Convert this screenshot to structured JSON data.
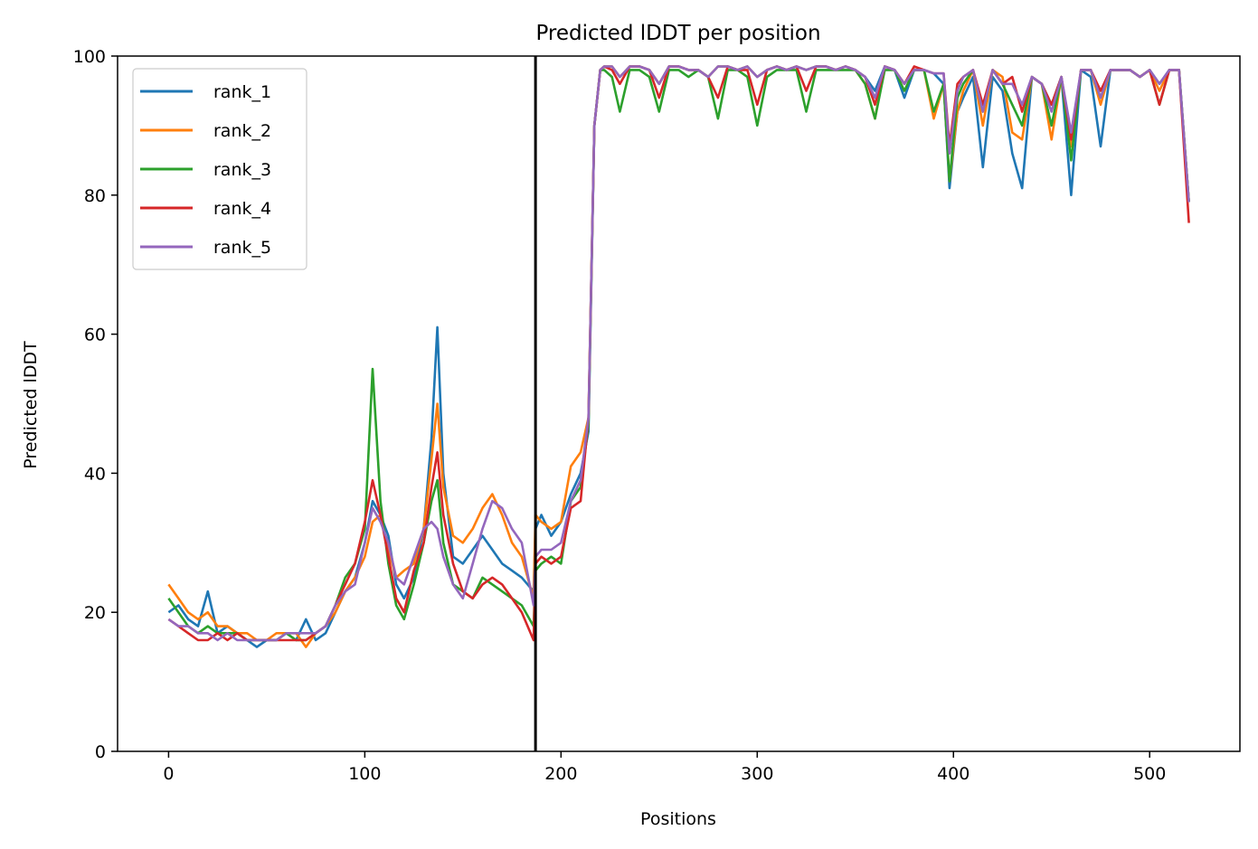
{
  "chart_data": {
    "type": "line",
    "title": "Predicted lDDT per position",
    "xlabel": "Positions",
    "ylabel": "Predicted lDDT",
    "xlim": [
      -26,
      546
    ],
    "ylim": [
      0,
      100
    ],
    "xticks": [
      0,
      100,
      200,
      300,
      400,
      500
    ],
    "yticks": [
      0,
      20,
      40,
      60,
      80,
      100
    ],
    "grid": false,
    "legend_position": "upper-left",
    "vertical_line": {
      "x": 187,
      "color": "#000000"
    },
    "x": [
      0,
      5,
      10,
      15,
      20,
      25,
      30,
      35,
      40,
      45,
      50,
      55,
      60,
      65,
      70,
      75,
      80,
      85,
      90,
      95,
      100,
      104,
      108,
      112,
      116,
      120,
      125,
      130,
      134,
      137,
      140,
      145,
      150,
      155,
      160,
      165,
      170,
      175,
      180,
      186,
      187,
      190,
      195,
      200,
      205,
      210,
      214,
      217,
      220,
      222,
      226,
      230,
      235,
      240,
      245,
      250,
      255,
      260,
      265,
      270,
      275,
      280,
      285,
      290,
      295,
      300,
      305,
      310,
      315,
      320,
      325,
      330,
      335,
      340,
      345,
      350,
      355,
      360,
      365,
      370,
      375,
      380,
      385,
      390,
      395,
      398,
      402,
      405,
      410,
      415,
      420,
      425,
      430,
      435,
      440,
      445,
      450,
      455,
      460,
      465,
      470,
      475,
      480,
      485,
      490,
      495,
      500,
      505,
      510,
      515,
      520
    ],
    "series": [
      {
        "name": "rank_1",
        "color": "#1f77b4",
        "values": [
          20,
          21,
          19,
          18,
          23,
          17,
          18,
          17,
          16,
          15,
          16,
          16,
          17,
          16,
          19,
          16,
          17,
          20,
          23,
          25,
          30,
          36,
          34,
          31,
          24,
          22,
          25,
          32,
          45,
          61,
          40,
          28,
          27,
          29,
          31,
          29,
          27,
          26,
          25,
          23,
          32,
          34,
          31,
          33,
          37,
          40,
          46,
          90,
          98,
          98.5,
          98.5,
          97,
          98.5,
          98.5,
          98,
          96,
          98.5,
          98.5,
          98,
          98,
          97,
          98.5,
          98.5,
          98,
          98.5,
          97,
          98,
          98.5,
          98,
          98.5,
          98,
          98.5,
          98.5,
          98,
          98.5,
          98,
          97,
          95,
          98.5,
          98,
          94,
          98,
          98,
          97.5,
          96,
          81,
          92,
          94,
          97,
          84,
          97,
          95,
          86,
          81,
          97,
          96,
          93,
          97,
          80,
          98,
          97,
          87,
          98,
          98,
          98,
          97,
          98,
          96,
          98,
          98,
          79
        ]
      },
      {
        "name": "rank_2",
        "color": "#ff7f0e",
        "values": [
          24,
          22,
          20,
          19,
          20,
          18,
          18,
          17,
          17,
          16,
          16,
          17,
          17,
          17,
          15,
          17,
          18,
          20,
          23,
          25,
          28,
          33,
          34,
          29,
          25,
          26,
          27,
          32,
          42,
          50,
          38,
          31,
          30,
          32,
          35,
          37,
          34,
          30,
          28,
          22,
          34,
          33,
          32,
          33,
          41,
          43,
          48,
          90,
          98,
          98.5,
          98.5,
          97,
          98.5,
          98.5,
          98,
          96,
          98.5,
          98.5,
          98,
          98,
          97,
          98.5,
          98.5,
          98,
          98.5,
          97,
          98,
          98.5,
          98,
          98.5,
          98,
          98.5,
          98.5,
          98,
          98.5,
          98,
          96,
          91,
          98.5,
          98,
          96,
          98,
          98,
          91,
          96,
          82,
          92,
          95,
          98,
          90,
          98,
          97,
          89,
          88,
          97,
          96,
          88,
          97,
          87,
          98,
          98,
          93,
          98,
          98,
          98,
          97,
          98,
          95,
          98,
          98,
          79
        ]
      },
      {
        "name": "rank_3",
        "color": "#2ca02c",
        "values": [
          22,
          20,
          18,
          17,
          18,
          17,
          17,
          17,
          16,
          16,
          16,
          16,
          17,
          16,
          16,
          17,
          18,
          21,
          25,
          27,
          32,
          55,
          36,
          27,
          21,
          19,
          24,
          30,
          36,
          39,
          30,
          24,
          23,
          22,
          25,
          24,
          23,
          22,
          21,
          18,
          26,
          27,
          28,
          27,
          36,
          38,
          47,
          90,
          98,
          98,
          97,
          92,
          98,
          98,
          97,
          92,
          98,
          98,
          97,
          98,
          97,
          91,
          98,
          98,
          97,
          90,
          97,
          98,
          98,
          98,
          92,
          98,
          98,
          98,
          98,
          98,
          96,
          91,
          98,
          98,
          95,
          98,
          98,
          92,
          96,
          82,
          94,
          96,
          98,
          92,
          98,
          96,
          93,
          90,
          97,
          96,
          90,
          97,
          85,
          98,
          98,
          94,
          98,
          98,
          98,
          97,
          98,
          93,
          98,
          98,
          79
        ]
      },
      {
        "name": "rank_4",
        "color": "#d62728",
        "values": [
          19,
          18,
          17,
          16,
          16,
          17,
          16,
          17,
          16,
          16,
          16,
          16,
          16,
          16,
          16,
          17,
          18,
          21,
          24,
          27,
          33,
          39,
          34,
          28,
          22,
          20,
          26,
          30,
          38,
          43,
          34,
          27,
          23,
          22,
          24,
          25,
          24,
          22,
          20,
          16,
          27,
          28,
          27,
          28,
          35,
          36,
          48,
          90,
          98,
          98.5,
          98,
          96,
          98.5,
          98.5,
          98,
          94,
          98.5,
          98.5,
          98,
          98,
          97,
          94,
          98.5,
          98,
          98,
          93,
          98,
          98.5,
          98,
          98.5,
          95,
          98.5,
          98.5,
          98,
          98.5,
          98,
          97,
          93,
          98.5,
          98,
          96,
          98.5,
          98,
          97.5,
          97.5,
          87,
          96,
          97,
          98,
          93,
          98,
          96,
          97,
          92,
          97,
          96,
          93,
          97,
          88,
          98,
          98,
          95,
          98,
          98,
          98,
          97,
          98,
          93,
          98,
          98,
          76
        ]
      },
      {
        "name": "rank_5",
        "color": "#9467bd",
        "values": [
          19,
          18,
          18,
          17,
          17,
          16,
          17,
          16,
          16,
          16,
          16,
          16,
          17,
          17,
          17,
          17,
          18,
          21,
          23,
          24,
          30,
          35,
          33,
          30,
          25,
          24,
          28,
          32,
          33,
          32,
          28,
          24,
          22,
          27,
          32,
          36,
          35,
          32,
          30,
          21,
          28,
          29,
          29,
          30,
          36,
          39,
          48,
          90,
          98,
          98.5,
          98.5,
          97,
          98.5,
          98.5,
          98,
          96,
          98.5,
          98.5,
          98,
          98,
          97,
          98.5,
          98.5,
          98,
          98.5,
          97,
          98,
          98.5,
          98,
          98.5,
          98,
          98.5,
          98.5,
          98,
          98.5,
          98,
          97,
          94,
          98.5,
          98,
          96,
          98,
          98,
          97.5,
          97.5,
          86,
          95,
          97,
          98,
          92,
          98,
          96,
          96,
          93,
          97,
          96,
          92,
          97,
          89,
          98,
          98,
          94,
          98,
          98,
          98,
          97,
          98,
          96,
          98,
          98,
          79
        ]
      }
    ]
  }
}
